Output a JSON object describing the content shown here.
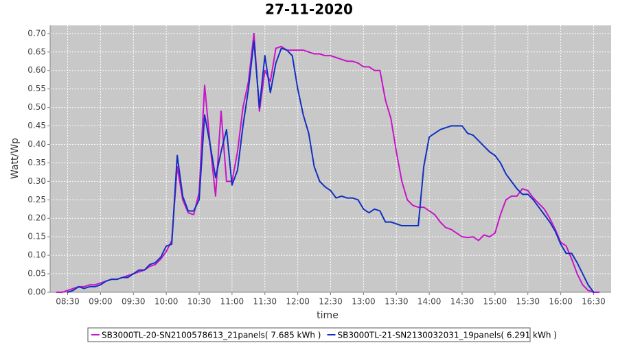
{
  "chart_data": {
    "type": "line",
    "title": "27-11-2020",
    "x_label": "time",
    "y_label": "Watt/Wp",
    "grid": true,
    "legend": "bottom",
    "xlim": [
      "08:14",
      "16:46"
    ],
    "xticks": [
      "08:30",
      "09:00",
      "09:30",
      "10:00",
      "10:30",
      "11:00",
      "11:30",
      "12:00",
      "12:30",
      "13:00",
      "13:30",
      "14:00",
      "14:30",
      "15:00",
      "15:30",
      "16:00",
      "16:30"
    ],
    "ylim": [
      0,
      0.722
    ],
    "yticks": [
      {
        "value": 0,
        "label": "0.00"
      },
      {
        "value": 0.05,
        "label": "0.05"
      },
      {
        "value": 0.1,
        "label": "0.10"
      },
      {
        "value": 0.15,
        "label": "0.15"
      },
      {
        "value": 0.2,
        "label": "0.20"
      },
      {
        "value": 0.25,
        "label": "0.25"
      },
      {
        "value": 0.3,
        "label": "0.30"
      },
      {
        "value": 0.35,
        "label": "0.35"
      },
      {
        "value": 0.4,
        "label": "0.40"
      },
      {
        "value": 0.45,
        "label": "0.45"
      },
      {
        "value": 0.5,
        "label": "0.50"
      },
      {
        "value": 0.55,
        "label": "0.55"
      },
      {
        "value": 0.6,
        "label": "0.60"
      },
      {
        "value": 0.65,
        "label": "0.65"
      },
      {
        "value": 0.7,
        "label": "0.70"
      }
    ],
    "x": [
      "08:20",
      "08:25",
      "08:30",
      "08:35",
      "08:40",
      "08:45",
      "08:50",
      "08:55",
      "09:00",
      "09:05",
      "09:10",
      "09:15",
      "09:20",
      "09:25",
      "09:30",
      "09:35",
      "09:40",
      "09:45",
      "09:50",
      "09:55",
      "10:00",
      "10:05",
      "10:10",
      "10:15",
      "10:20",
      "10:25",
      "10:30",
      "10:35",
      "10:40",
      "10:45",
      "10:50",
      "10:55",
      "11:00",
      "11:05",
      "11:10",
      "11:15",
      "11:20",
      "11:25",
      "11:30",
      "11:35",
      "11:40",
      "11:45",
      "11:50",
      "11:55",
      "12:00",
      "12:05",
      "12:10",
      "12:15",
      "12:20",
      "12:25",
      "12:30",
      "12:35",
      "12:40",
      "12:45",
      "12:50",
      "12:55",
      "13:00",
      "13:05",
      "13:10",
      "13:15",
      "13:20",
      "13:25",
      "13:30",
      "13:35",
      "13:40",
      "13:45",
      "13:50",
      "13:55",
      "14:00",
      "14:05",
      "14:10",
      "14:15",
      "14:20",
      "14:25",
      "14:30",
      "14:35",
      "14:40",
      "14:45",
      "14:50",
      "14:55",
      "15:00",
      "15:05",
      "15:10",
      "15:15",
      "15:20",
      "15:25",
      "15:30",
      "15:35",
      "15:40",
      "15:45",
      "15:50",
      "15:55",
      "16:00",
      "16:05",
      "16:10",
      "16:15",
      "16:20",
      "16:25",
      "16:30",
      "16:35",
      "16:40"
    ],
    "series": [
      {
        "name": "SB3000TL-20-SN2100578613_21panels( 7.685 kWh )",
        "color": "#c814c8",
        "values": [
          0,
          0,
          0.005,
          0.01,
          0.015,
          0.015,
          0.02,
          0.02,
          0.025,
          0.03,
          0.035,
          0.035,
          0.04,
          0.045,
          0.05,
          0.055,
          0.06,
          0.07,
          0.075,
          0.09,
          0.11,
          0.14,
          0.34,
          0.25,
          0.215,
          0.21,
          0.27,
          0.56,
          0.4,
          0.26,
          0.49,
          0.3,
          0.3,
          0.38,
          0.5,
          0.57,
          0.7,
          0.49,
          0.6,
          0.57,
          0.66,
          0.665,
          0.655,
          0.655,
          0.655,
          0.655,
          0.65,
          0.645,
          0.645,
          0.64,
          0.64,
          0.635,
          0.63,
          0.625,
          0.625,
          0.62,
          0.61,
          0.61,
          0.6,
          0.6,
          0.52,
          0.47,
          0.38,
          0.3,
          0.25,
          0.235,
          0.23,
          0.23,
          0.22,
          0.21,
          0.19,
          0.175,
          0.17,
          0.16,
          0.15,
          0.148,
          0.15,
          0.14,
          0.155,
          0.15,
          0.16,
          0.21,
          0.25,
          0.26,
          0.26,
          0.28,
          0.275,
          0.255,
          0.24,
          0.225,
          0.2,
          0.17,
          0.135,
          0.125,
          0.09,
          0.05,
          0.02,
          0.005,
          0,
          0,
          null
        ]
      },
      {
        "name": "SB3000TL-21-SN2130032031_19panels( 6.291 kWh )",
        "color": "#1030c0",
        "values": [
          null,
          null,
          0,
          0.005,
          0.015,
          0.01,
          0.015,
          0.015,
          0.02,
          0.03,
          0.035,
          0.035,
          0.04,
          0.04,
          0.05,
          0.06,
          0.06,
          0.075,
          0.08,
          0.095,
          0.125,
          0.13,
          0.37,
          0.26,
          0.22,
          0.22,
          0.25,
          0.48,
          0.4,
          0.31,
          0.38,
          0.44,
          0.29,
          0.33,
          0.45,
          0.55,
          0.68,
          0.5,
          0.64,
          0.54,
          0.62,
          0.66,
          0.655,
          0.64,
          0.55,
          0.48,
          0.43,
          0.34,
          0.3,
          0.285,
          0.275,
          0.255,
          0.26,
          0.255,
          0.255,
          0.25,
          0.225,
          0.215,
          0.225,
          0.22,
          0.19,
          0.19,
          0.185,
          0.18,
          0.18,
          0.18,
          0.18,
          0.34,
          0.42,
          0.43,
          0.44,
          0.445,
          0.45,
          0.45,
          0.45,
          0.43,
          0.425,
          0.41,
          0.395,
          0.38,
          0.37,
          0.35,
          0.32,
          0.3,
          0.28,
          0.265,
          0.265,
          0.25,
          0.23,
          0.21,
          0.19,
          0.165,
          0.13,
          0.105,
          0.105,
          0.08,
          0.05,
          0.02,
          0,
          null,
          null
        ]
      }
    ]
  }
}
